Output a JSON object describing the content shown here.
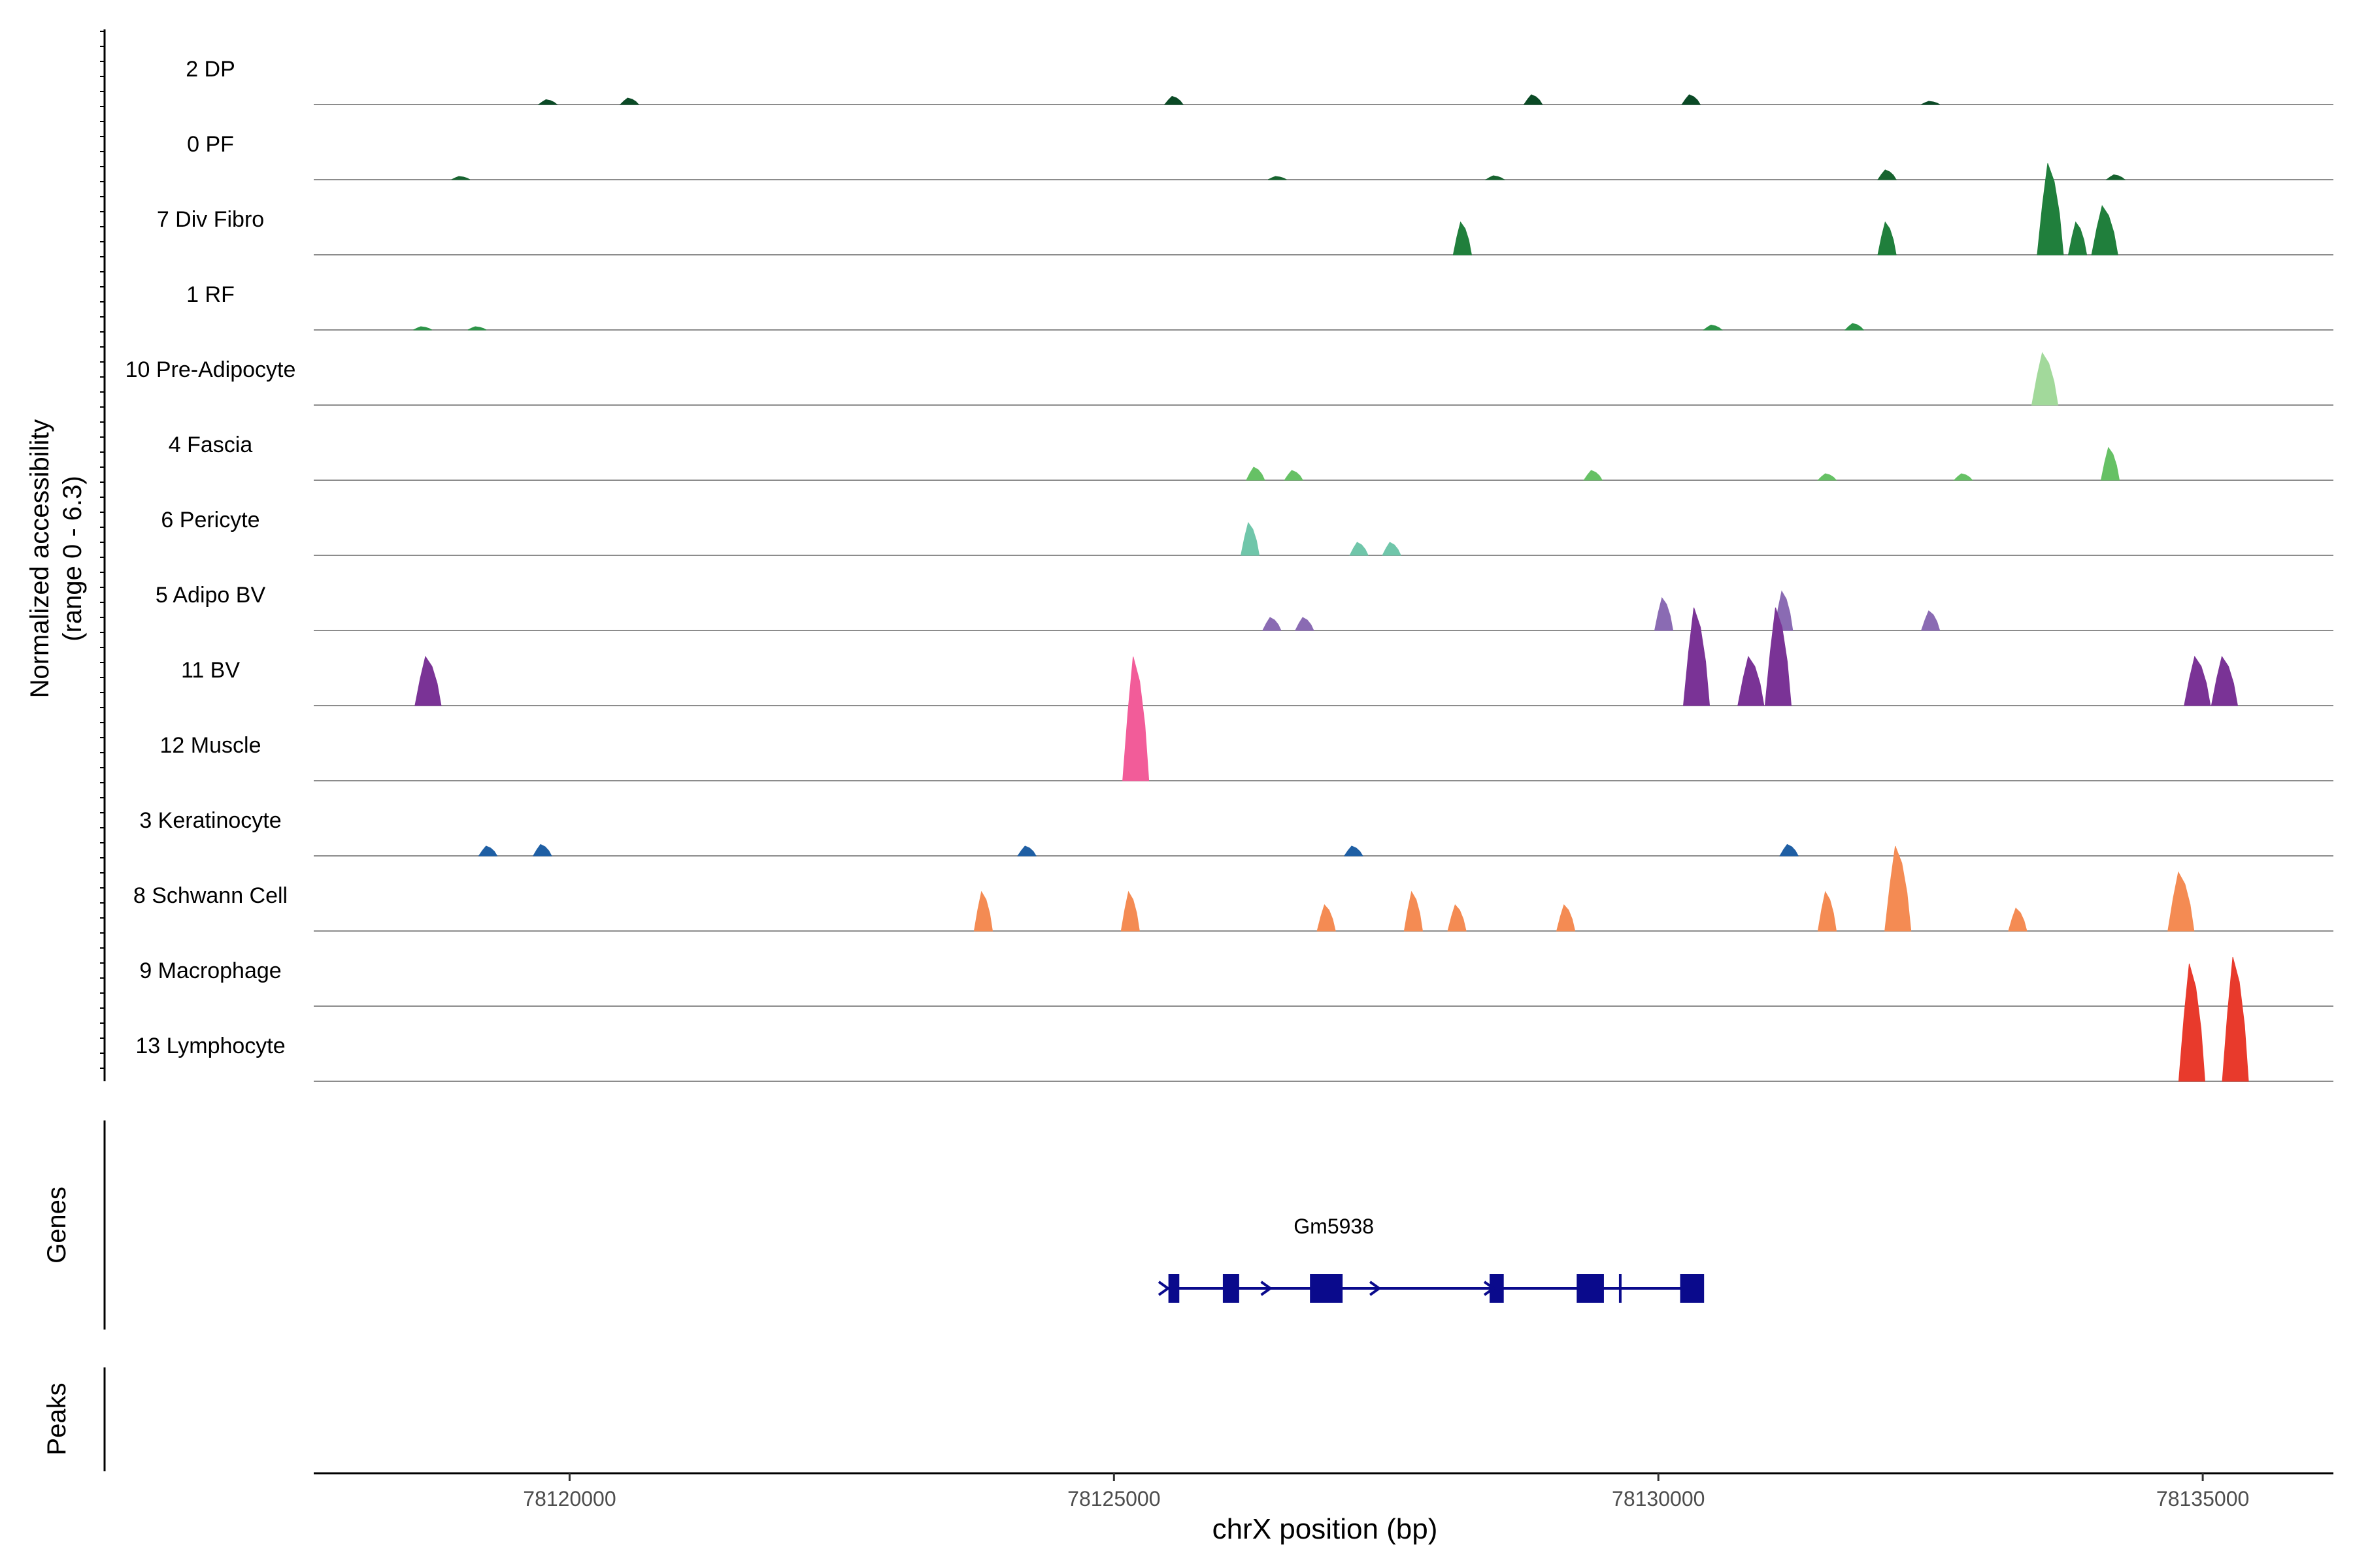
{
  "chart_data": {
    "type": "area",
    "title": "",
    "ylabel_line1": "Normalized accessibility",
    "ylabel_line2": "(range 0 - 6.3)",
    "ylim": [
      0,
      6.3
    ],
    "xlabel": "chrX position (bp)",
    "xlim": [
      78117650,
      78136200
    ],
    "xticks": [
      78120000,
      78125000,
      78130000,
      78135000
    ],
    "tracks": [
      {
        "label": "2 DP",
        "color": "#0b4a26",
        "peaks": [
          [
            78119800,
            0.15
          ],
          [
            78120550,
            0.2
          ],
          [
            78125550,
            0.25
          ],
          [
            78128850,
            0.3
          ],
          [
            78130300,
            0.3
          ],
          [
            78132500,
            0.1
          ]
        ]
      },
      {
        "label": "0 PF",
        "color": "#17632f",
        "peaks": [
          [
            78119000,
            0.1
          ],
          [
            78126500,
            0.1
          ],
          [
            78128500,
            0.12
          ],
          [
            78132100,
            0.3
          ],
          [
            78134200,
            0.15
          ]
        ]
      },
      {
        "label": "7 Div Fibro",
        "color": "#207f3c",
        "peaks": [
          [
            78128200,
            1.0
          ],
          [
            78132100,
            1.0
          ],
          [
            78133600,
            2.8
          ],
          [
            78133850,
            1.0
          ],
          [
            78134100,
            1.5
          ]
        ]
      },
      {
        "label": "1 RF",
        "color": "#2d9448",
        "peaks": [
          [
            78118650,
            0.1
          ],
          [
            78119150,
            0.1
          ],
          [
            78130500,
            0.15
          ],
          [
            78131800,
            0.2
          ]
        ]
      },
      {
        "label": "10 Pre-Adipocyte",
        "color": "#a2d99b",
        "peaks": [
          [
            78133550,
            1.6
          ]
        ]
      },
      {
        "label": "4 Fascia",
        "color": "#66c165",
        "peaks": [
          [
            78126300,
            0.4
          ],
          [
            78126650,
            0.3
          ],
          [
            78129400,
            0.3
          ],
          [
            78131550,
            0.2
          ],
          [
            78132800,
            0.2
          ],
          [
            78134150,
            1.0
          ]
        ]
      },
      {
        "label": "6 Pericyte",
        "color": "#70c6aa",
        "peaks": [
          [
            78126250,
            1.0
          ],
          [
            78127250,
            0.4
          ],
          [
            78127550,
            0.4
          ]
        ]
      },
      {
        "label": "5 Adipo BV",
        "color": "#8a6bb3",
        "peaks": [
          [
            78126450,
            0.4
          ],
          [
            78126750,
            0.4
          ],
          [
            78130050,
            1.0
          ],
          [
            78131150,
            1.2
          ],
          [
            78132500,
            0.6
          ]
        ]
      },
      {
        "label": "11 BV",
        "color": "#7a3396",
        "peaks": [
          [
            78118700,
            1.5
          ],
          [
            78130350,
            3.0
          ],
          [
            78130850,
            1.5
          ],
          [
            78131100,
            3.0
          ],
          [
            78134950,
            1.5
          ],
          [
            78135200,
            1.5
          ]
        ]
      },
      {
        "label": "12 Muscle",
        "color": "#f25c99",
        "peaks": [
          [
            78125200,
            3.8
          ]
        ]
      },
      {
        "label": "3 Keratinocyte",
        "color": "#1f5fa4",
        "peaks": [
          [
            78119250,
            0.3
          ],
          [
            78119750,
            0.35
          ],
          [
            78124200,
            0.3
          ],
          [
            78127200,
            0.3
          ],
          [
            78131200,
            0.35
          ]
        ]
      },
      {
        "label": "8 Schwann Cell",
        "color": "#f48b53",
        "peaks": [
          [
            78123800,
            1.2
          ],
          [
            78125150,
            1.2
          ],
          [
            78126950,
            0.8
          ],
          [
            78127750,
            1.2
          ],
          [
            78128150,
            0.8
          ],
          [
            78129150,
            0.8
          ],
          [
            78131550,
            1.2
          ],
          [
            78132200,
            2.6
          ],
          [
            78133300,
            0.7
          ],
          [
            78134800,
            1.8
          ]
        ]
      },
      {
        "label": "9 Macrophage",
        "color": "#d7301f",
        "peaks": []
      },
      {
        "label": "13 Lymphocyte",
        "color": "#e83a2c",
        "peaks": [
          [
            78134900,
            3.6
          ],
          [
            78135300,
            3.8
          ]
        ]
      }
    ],
    "genes_label": "Genes",
    "peaks_label": "Peaks",
    "gene": {
      "name": "Gm5938",
      "color": "#0a0a8c",
      "start": 78125500,
      "end": 78130400,
      "exons": [
        [
          78125500,
          78125600
        ],
        [
          78126000,
          78126150
        ],
        [
          78126800,
          78127100
        ],
        [
          78128450,
          78128580
        ],
        [
          78129250,
          78129500
        ],
        [
          78130200,
          78130420
        ]
      ],
      "marker": 78129650,
      "arrows": [
        78125460,
        78126400,
        78127400,
        78128450
      ]
    }
  }
}
